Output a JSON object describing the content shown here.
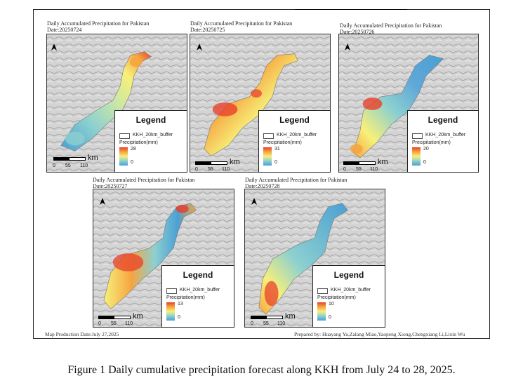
{
  "panels": [
    {
      "title": "Daily Accumulated Precipitation for Pakistan",
      "date": "Date:20250724",
      "legend_title": "Legend",
      "buffer_label": "KKH_20km_buffer",
      "precip_label": "Precipitation(mm)",
      "max": "28",
      "min": "0",
      "scale_unit": "km",
      "ticks": [
        "0",
        "55",
        "110"
      ]
    },
    {
      "title": "Daily Accumulated Precipitation for Pakistan",
      "date": "Date:20250725",
      "legend_title": "Legend",
      "buffer_label": "KKH_20km_buffer",
      "precip_label": "Precipitation(mm)",
      "max": "31",
      "min": "0",
      "scale_unit": "km",
      "ticks": [
        "0",
        "55",
        "110"
      ]
    },
    {
      "title": "Daily Accumulated Precipitation for Pakistan",
      "date": "Date:20250726",
      "legend_title": "Legend",
      "buffer_label": "KKH_20km_buffer",
      "precip_label": "Precipitation(mm)",
      "max": "20",
      "min": "0",
      "scale_unit": "km",
      "ticks": [
        "0",
        "55",
        "110"
      ]
    },
    {
      "title": "Daily Accumulated Precipitation for Pakistan",
      "date": "Date:20250727",
      "legend_title": "Legend",
      "buffer_label": "KKH_20km_buffer",
      "precip_label": "Precipitation(mm)",
      "max": "13",
      "min": "0",
      "scale_unit": "km",
      "ticks": [
        "0",
        "55",
        "110"
      ]
    },
    {
      "title": "Daily Accumulated Precipitation for Pakistan",
      "date": "Date:20250728",
      "legend_title": "Legend",
      "buffer_label": "KKH_20km_buffer",
      "precip_label": "Precipitation(mm)",
      "max": "10",
      "min": "0",
      "scale_unit": "km",
      "ticks": [
        "0",
        "55",
        "110"
      ]
    }
  ],
  "footer": {
    "production_date": "Map Production Date:July 27,2025",
    "prepared_by": "Prepared by:  Huayang Yu,Zalang Miao,Yaopeng Xiong,Chengxiang Li,Lixin Wu"
  },
  "caption": "Figure 1 Daily cumulative precipitation forecast along KKH from July 24 to 28, 2025.",
  "colors": {
    "high": "#e8412b",
    "mid_high": "#f5a540",
    "mid": "#f7f07a",
    "mid_low": "#8dd0d0",
    "low": "#4a9fd4"
  }
}
